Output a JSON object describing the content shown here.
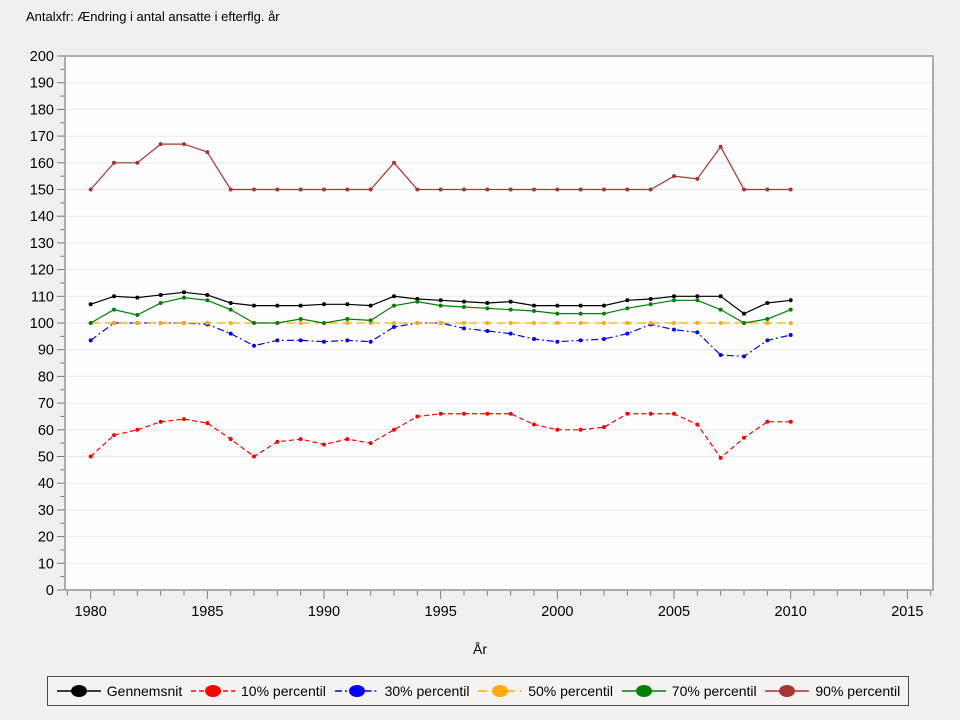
{
  "page": {
    "title": "Antalxfr: Ændring i antal ansatte i efterflg. år"
  },
  "chart_data": {
    "type": "line",
    "title": "Antalxfr: Ændring i antal ansatte i efterflg. år",
    "xlabel": "År",
    "ylabel": "",
    "x": [
      1980,
      1981,
      1982,
      1983,
      1984,
      1985,
      1986,
      1987,
      1988,
      1989,
      1990,
      1991,
      1992,
      1993,
      1994,
      1995,
      1996,
      1997,
      1998,
      1999,
      2000,
      2001,
      2002,
      2003,
      2004,
      2005,
      2006,
      2007,
      2008,
      2009,
      2010
    ],
    "xlim": [
      1978.9,
      2016.1
    ],
    "ylim": [
      0,
      200
    ],
    "x_major_ticks": [
      1980,
      1985,
      1990,
      1995,
      2000,
      2005,
      2010,
      2015
    ],
    "x_minor_step": 1,
    "y_tick_step": 10,
    "y_minor_step": 5,
    "grid": "horizontal",
    "legend_position": "bottom",
    "series": [
      {
        "name": "Gennemsnit",
        "color": "#000000",
        "style": "solid",
        "values": [
          107,
          110,
          109.5,
          110.5,
          111.5,
          110.5,
          107.5,
          106.5,
          106.5,
          106.5,
          107,
          107,
          106.5,
          110,
          109,
          108.5,
          108,
          107.5,
          108,
          106.5,
          106.5,
          106.5,
          106.5,
          108.5,
          109,
          110,
          110,
          110,
          103.5,
          107.5,
          108.5
        ]
      },
      {
        "name": "10% percentil",
        "color": "#ff0000",
        "style": "dashed",
        "values": [
          50,
          58,
          60,
          63,
          64,
          62.5,
          56.5,
          50,
          55.5,
          56.5,
          54.5,
          56.5,
          55,
          60,
          65,
          66,
          66,
          66,
          66,
          62,
          60,
          60,
          61,
          66,
          66,
          66,
          62,
          49.5,
          57,
          63,
          63
        ]
      },
      {
        "name": "30% percentil",
        "color": "#0000ff",
        "style": "dashdot",
        "values": [
          93.5,
          100,
          100,
          100,
          100,
          99.5,
          96,
          91.5,
          93.5,
          93.5,
          93,
          93.5,
          93,
          98.5,
          100,
          100,
          98,
          97,
          96,
          94,
          93,
          93.5,
          94,
          96,
          99.5,
          97.5,
          96.5,
          88,
          87.5,
          93.5,
          95.5
        ]
      },
      {
        "name": "50% percentil",
        "color": "#ffaa00",
        "style": "longdash",
        "values": [
          100,
          100,
          100,
          100,
          100,
          100,
          100,
          100,
          100,
          100,
          100,
          100,
          100,
          100,
          100,
          100,
          100,
          100,
          100,
          100,
          100,
          100,
          100,
          100,
          100,
          100,
          100,
          100,
          100,
          100,
          100
        ]
      },
      {
        "name": "70% percentil",
        "color": "#008000",
        "style": "solid",
        "values": [
          100,
          105,
          103,
          107.5,
          109.5,
          108.5,
          105,
          100,
          100,
          101.5,
          100,
          101.5,
          101,
          106.5,
          108,
          106.5,
          106,
          105.5,
          105,
          104.5,
          103.5,
          103.5,
          103.5,
          105.5,
          107,
          108.5,
          108.5,
          105,
          100,
          101.5,
          105
        ]
      },
      {
        "name": "90% percentil",
        "color": "#aa3333",
        "style": "solid",
        "values": [
          150,
          160,
          160,
          167,
          167,
          164,
          150,
          150,
          150,
          150,
          150,
          150,
          150,
          160,
          150,
          150,
          150,
          150,
          150,
          150,
          150,
          150,
          150,
          150,
          150,
          155,
          154,
          166,
          150,
          150,
          150
        ]
      }
    ]
  }
}
